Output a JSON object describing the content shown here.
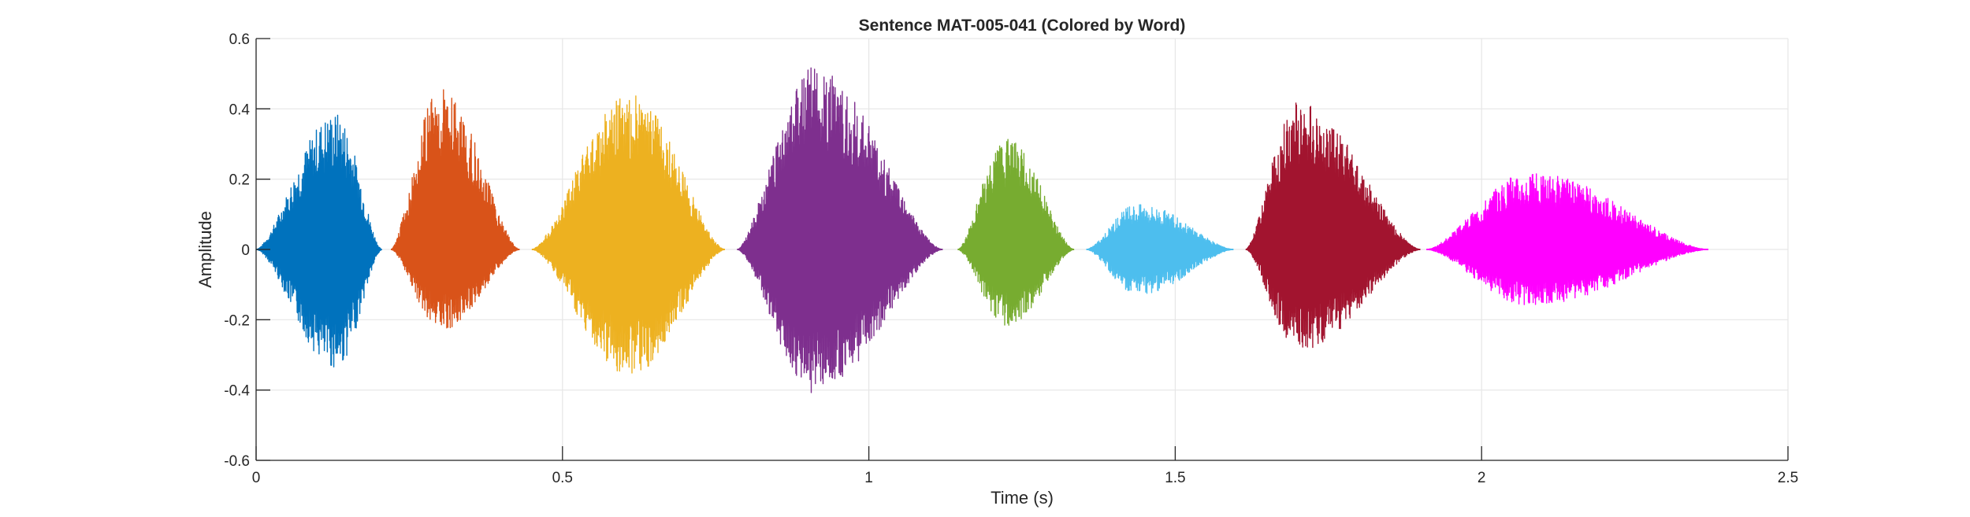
{
  "chart_data": {
    "type": "line",
    "title": "Sentence MAT-005-041 (Colored by Word)",
    "xlabel": "Time (s)",
    "ylabel": "Amplitude",
    "xlim": [
      0,
      2.5
    ],
    "ylim": [
      -0.6,
      0.6
    ],
    "xticks": [
      0,
      0.5,
      1,
      1.5,
      2,
      2.5
    ],
    "xtick_labels": [
      "0",
      "0.5",
      "1",
      "1.5",
      "2",
      "2.5"
    ],
    "yticks": [
      -0.6,
      -0.4,
      -0.2,
      0,
      0.2,
      0.4,
      0.6
    ],
    "ytick_labels": [
      "-0.6",
      "-0.4",
      "-0.2",
      "0",
      "0.2",
      "0.4",
      "0.6"
    ],
    "grid": true,
    "series": [
      {
        "color": "#0072BD",
        "t_start": 0.0,
        "t_end": 0.205,
        "max": 0.39,
        "min": -0.34,
        "peak_t": 0.13
      },
      {
        "color": "#D95319",
        "t_start": 0.22,
        "t_end": 0.43,
        "max": 0.46,
        "min": -0.23,
        "peak_t": 0.3
      },
      {
        "color": "#EDB120",
        "t_start": 0.45,
        "t_end": 0.765,
        "max": 0.45,
        "min": -0.36,
        "peak_t": 0.61
      },
      {
        "color": "#7E2F8E",
        "t_start": 0.785,
        "t_end": 1.12,
        "max": 0.52,
        "min": -0.41,
        "peak_t": 0.91
      },
      {
        "color": "#77AC30",
        "t_start": 1.145,
        "t_end": 1.335,
        "max": 0.32,
        "min": -0.22,
        "peak_t": 1.225
      },
      {
        "color": "#4DBEEE",
        "t_start": 1.355,
        "t_end": 1.595,
        "max": 0.13,
        "min": -0.13,
        "peak_t": 1.44
      },
      {
        "color": "#A2142F",
        "t_start": 1.615,
        "t_end": 1.9,
        "max": 0.42,
        "min": -0.29,
        "peak_t": 1.7
      },
      {
        "color": "#FF00FF",
        "t_start": 1.91,
        "t_end": 2.37,
        "max": 0.22,
        "min": -0.16,
        "peak_t": 2.08
      }
    ]
  }
}
